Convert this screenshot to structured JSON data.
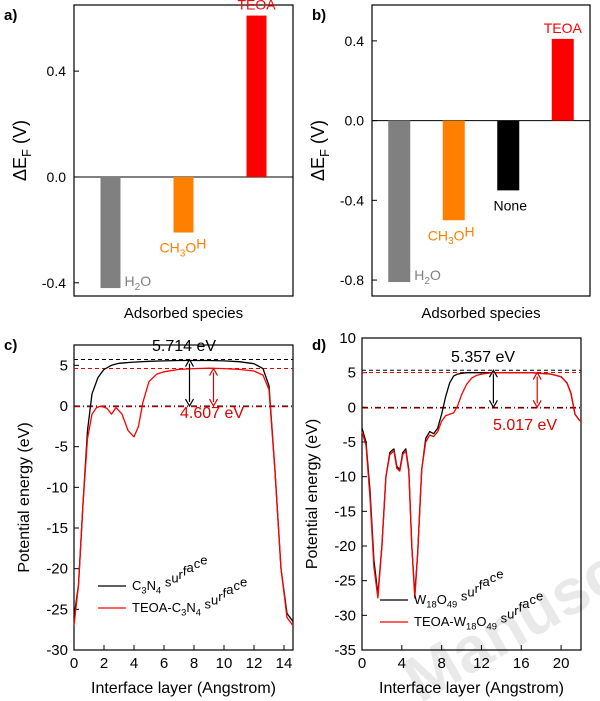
{
  "watermark": "Manuscript",
  "chart_data": [
    {
      "panel": "a)",
      "type": "bar",
      "ylabel_main": "ΔE",
      "ylabel_sub": "F",
      "ylabel_unit": " (V)",
      "xlabel": "Adsorbed species",
      "ylim": [
        -0.45,
        0.65
      ],
      "yticks": [
        "-0.4",
        "0.0",
        "0.4"
      ],
      "ytick_values": [
        -0.4,
        0.0,
        0.4
      ],
      "grid": false,
      "categories": [
        "H₂O",
        "CH₃OH",
        "TEOA"
      ],
      "values": [
        -0.42,
        -0.21,
        0.61
      ],
      "colors": [
        "#808080",
        "#ff8000",
        "#ff0000"
      ]
    },
    {
      "panel": "b)",
      "type": "bar",
      "ylabel_main": "ΔE",
      "ylabel_sub": "F",
      "ylabel_unit": " (V)",
      "xlabel": "Adsorbed species",
      "ylim": [
        -0.88,
        0.58
      ],
      "yticks": [
        "-0.8",
        "-0.4",
        "0.0",
        "0.4"
      ],
      "ytick_values": [
        -0.8,
        -0.4,
        0.0,
        0.4
      ],
      "grid": false,
      "categories": [
        "H₂O",
        "CH₃OH",
        "None",
        "TEOA"
      ],
      "values": [
        -0.81,
        -0.5,
        -0.35,
        0.41
      ],
      "colors": [
        "#808080",
        "#ff8000",
        "#000000",
        "#ff0000"
      ]
    },
    {
      "panel": "c)",
      "type": "line",
      "xlabel": "Interface layer (Angstrom)",
      "ylabel": "Potential energy (eV)",
      "xlim": [
        0,
        14.6
      ],
      "ylim": [
        -30,
        7.5
      ],
      "xticks": [
        0,
        2,
        4,
        6,
        8,
        10,
        12,
        14
      ],
      "yticks": [
        5,
        0,
        -5,
        -10,
        -15,
        -20,
        -25,
        -30
      ],
      "ref_levels": [
        5.714,
        4.607,
        0
      ],
      "annotations": [
        "5.714 eV",
        "4.607 eV"
      ],
      "series": [
        {
          "name": "C₃N₄ surface",
          "color": "#000000",
          "x": [
            0,
            0.3,
            0.6,
            0.9,
            1.2,
            1.6,
            2.0,
            2.5,
            3.0,
            4.0,
            5.0,
            6.0,
            7.0,
            8.0,
            9.0,
            10.0,
            11.0,
            12.0,
            12.6,
            13.0,
            13.4,
            13.8,
            14.2,
            14.6
          ],
          "y": [
            -26,
            -22,
            -12,
            -3,
            1.5,
            3.5,
            4.5,
            5.0,
            5.25,
            5.4,
            5.5,
            5.55,
            5.6,
            5.6,
            5.6,
            5.55,
            5.45,
            5.2,
            4.6,
            2.5,
            -8,
            -20,
            -25.5,
            -26.5
          ]
        },
        {
          "name": "TEOA-C₃N₄ surface",
          "color": "#ff0000",
          "x": [
            0,
            0.3,
            0.6,
            0.9,
            1.2,
            1.5,
            1.8,
            2.2,
            2.5,
            2.8,
            3.2,
            3.6,
            4.0,
            4.3,
            4.6,
            5.0,
            5.5,
            6.0,
            7.0,
            8.0,
            9.0,
            10.0,
            11.0,
            12.0,
            12.6,
            13.0,
            13.4,
            13.8,
            14.2,
            14.6
          ],
          "y": [
            -27,
            -22,
            -12,
            -4,
            -1,
            -0.2,
            0.0,
            -0.3,
            -1.0,
            -0.2,
            -1.0,
            -3.0,
            -3.8,
            -2.5,
            0.5,
            3.0,
            3.9,
            4.2,
            4.5,
            4.6,
            4.65,
            4.6,
            4.5,
            4.3,
            3.8,
            2.0,
            -8,
            -20,
            -26,
            -27
          ]
        }
      ]
    },
    {
      "panel": "d)",
      "type": "line",
      "xlabel": "Interface layer (Angstrom)",
      "ylabel": "Potential energy (eV)",
      "xlim": [
        0,
        22
      ],
      "ylim": [
        -35,
        10
      ],
      "xticks": [
        0,
        4,
        8,
        12,
        16,
        20
      ],
      "yticks": [
        10,
        5,
        0,
        -5,
        -10,
        -15,
        -20,
        -25,
        -30,
        -35
      ],
      "ref_levels": [
        5.357,
        5.017,
        0
      ],
      "annotations": [
        "5.357 eV",
        "5.017 eV"
      ],
      "series": [
        {
          "name": "W₁₈O₄₉ surface",
          "color": "#000000",
          "x": [
            0,
            0.4,
            0.8,
            1.2,
            1.6,
            2.0,
            2.4,
            2.8,
            3.2,
            3.5,
            3.8,
            4.1,
            4.4,
            4.7,
            5.0,
            5.3,
            5.6,
            6.0,
            6.4,
            6.8,
            7.2,
            7.6,
            8.0,
            8.4,
            8.8,
            9.2,
            9.6,
            10.0,
            10.5,
            11.0,
            12.0,
            13.0,
            14.0,
            15.0,
            16.0,
            17.0,
            18.0,
            19.0,
            20.0,
            20.6,
            21.0,
            21.4,
            21.8,
            22.0
          ],
          "y": [
            -3,
            -5,
            -12,
            -22,
            -27,
            -20,
            -10,
            -6.5,
            -6.0,
            -8.5,
            -9.0,
            -6.5,
            -6.0,
            -9.0,
            -20,
            -27,
            -21,
            -9,
            -4.5,
            -3.5,
            -3.8,
            -3.0,
            -1.0,
            1.5,
            3.5,
            4.5,
            4.8,
            4.9,
            5.0,
            5.0,
            5.0,
            5.0,
            5.0,
            5.0,
            5.0,
            5.0,
            4.9,
            4.8,
            4.4,
            3.5,
            2.0,
            -1.0,
            -1.8,
            -2.0
          ]
        },
        {
          "name": "TEOA-W₁₈O₄₉ surface",
          "color": "#ff0000",
          "x": [
            0,
            0.4,
            0.8,
            1.2,
            1.6,
            2.0,
            2.4,
            2.8,
            3.2,
            3.5,
            3.8,
            4.1,
            4.4,
            4.7,
            5.0,
            5.3,
            5.6,
            6.0,
            6.4,
            6.8,
            7.2,
            7.6,
            8.0,
            8.4,
            8.8,
            9.2,
            9.6,
            10.0,
            10.5,
            11.0,
            11.5,
            12.0,
            13.0,
            14.0,
            15.0,
            16.0,
            17.0,
            18.0,
            19.0,
            20.0,
            20.6,
            21.0,
            21.4,
            21.8,
            22.0
          ],
          "y": [
            -3.5,
            -5.5,
            -13,
            -23,
            -27.5,
            -20,
            -10,
            -6.8,
            -6.3,
            -8.8,
            -9.2,
            -6.8,
            -6.3,
            -9.3,
            -20,
            -27.5,
            -21,
            -9,
            -5,
            -4,
            -4.2,
            -3.5,
            -2.0,
            -1.2,
            -1.0,
            -0.8,
            0.2,
            1.8,
            3.3,
            4.2,
            4.6,
            4.8,
            5.0,
            5.0,
            5.0,
            5.0,
            5.0,
            4.9,
            4.8,
            4.4,
            3.5,
            2.0,
            -1.0,
            -1.8,
            -2.0
          ]
        }
      ]
    }
  ]
}
